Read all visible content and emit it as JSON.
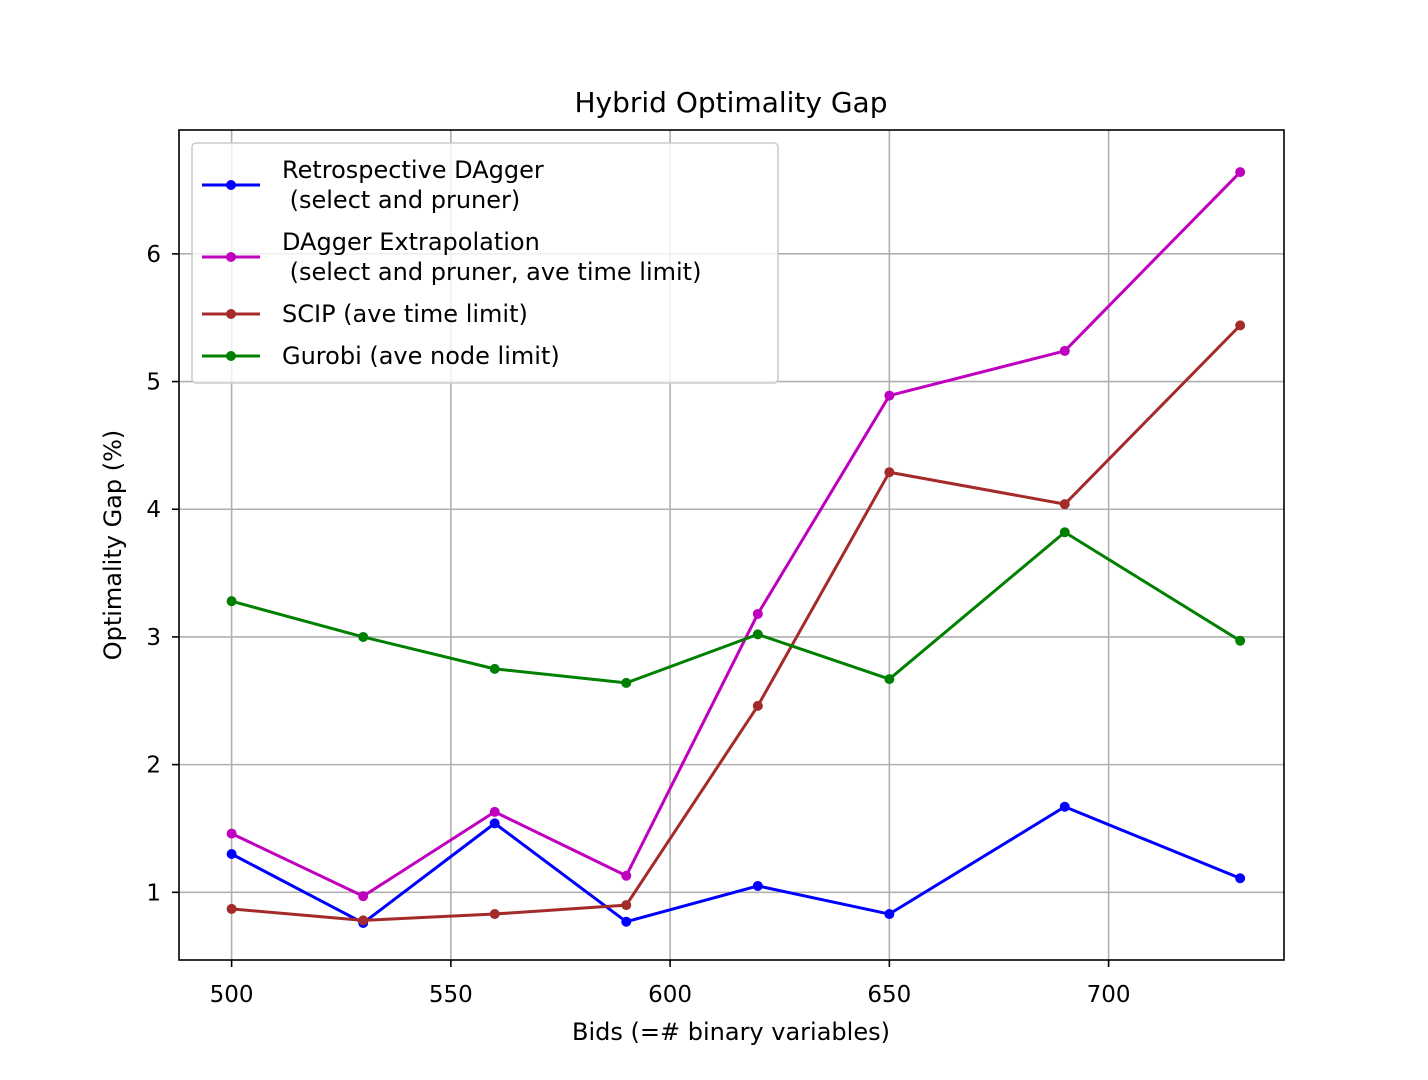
{
  "chart_data": {
    "type": "line",
    "title": "Hybrid Optimality Gap",
    "xlabel": "Bids (=# binary variables)",
    "ylabel": "Optimality Gap (%)",
    "xlim": [
      488,
      740
    ],
    "ylim": [
      0.47,
      6.97
    ],
    "x_ticks": [
      500,
      550,
      600,
      650,
      700
    ],
    "y_ticks": [
      1,
      2,
      3,
      4,
      5,
      6
    ],
    "grid": true,
    "legend_position": "upper-left",
    "x": [
      500,
      530,
      560,
      590,
      620,
      650,
      690,
      730
    ],
    "series": [
      {
        "name_lines": [
          "Retrospective DAgger",
          " (select and pruner)"
        ],
        "color": "#0000ff",
        "values": [
          1.3,
          0.76,
          1.54,
          0.77,
          1.05,
          0.83,
          1.67,
          1.11
        ]
      },
      {
        "name_lines": [
          "DAgger Extrapolation",
          " (select and pruner, ave time limit)"
        ],
        "color": "#bf00bf",
        "values": [
          1.46,
          0.97,
          1.63,
          1.13,
          3.18,
          4.89,
          5.24,
          6.64
        ]
      },
      {
        "name_lines": [
          "SCIP (ave time limit)"
        ],
        "color": "#a52a2a",
        "values": [
          0.87,
          0.78,
          0.83,
          0.9,
          2.46,
          4.29,
          4.04,
          5.44
        ]
      },
      {
        "name_lines": [
          "Gurobi (ave node limit)"
        ],
        "color": "#008000",
        "values": [
          3.28,
          3.0,
          2.75,
          2.64,
          3.02,
          2.67,
          3.82,
          2.97
        ]
      }
    ]
  }
}
